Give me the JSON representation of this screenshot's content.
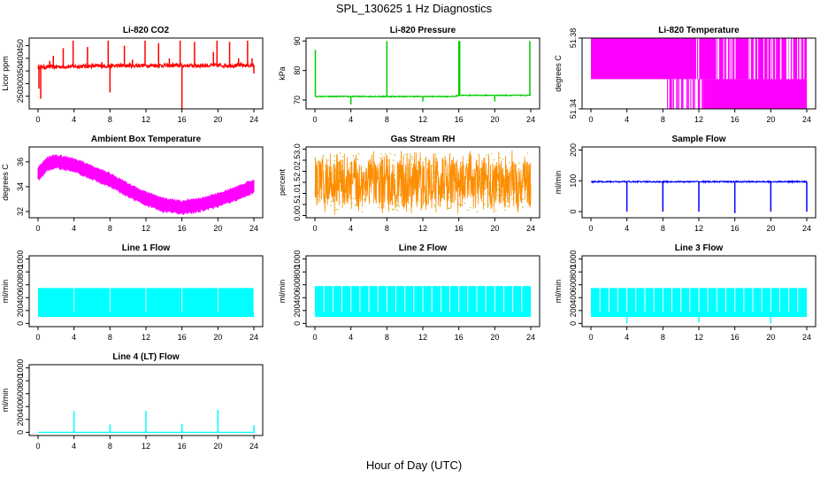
{
  "page": {
    "title": "SPL_130625  1 Hz Diagnostics",
    "xlabel": "Hour of Day (UTC)"
  },
  "chart_data": [
    {
      "type": "line",
      "title": "Li-820 CO2",
      "ylabel": "Licor ppm",
      "color": "#ff0000",
      "xlim": [
        0,
        24
      ],
      "xticks": [
        "0",
        "4",
        "8",
        "12",
        "16",
        "20",
        "24"
      ],
      "ylim": [
        200,
        480
      ],
      "yticks": [
        250,
        300,
        350,
        400,
        450
      ],
      "baseline": [
        [
          0,
          365
        ],
        [
          4,
          368
        ],
        [
          8,
          370
        ],
        [
          12,
          372
        ],
        [
          16,
          371
        ],
        [
          20,
          372
        ],
        [
          24,
          372
        ]
      ],
      "noise": 8,
      "spikes": [
        [
          0.1,
          280
        ],
        [
          0.3,
          240
        ],
        [
          1.3,
          390
        ],
        [
          1.7,
          410
        ],
        [
          2.8,
          440
        ],
        [
          3.9,
          470
        ],
        [
          5.5,
          445
        ],
        [
          7.1,
          385
        ],
        [
          7.8,
          470
        ],
        [
          8.0,
          265
        ],
        [
          9.6,
          450
        ],
        [
          10.5,
          395
        ],
        [
          11.9,
          470
        ],
        [
          13.4,
          460
        ],
        [
          14.6,
          400
        ],
        [
          15.8,
          470
        ],
        [
          16.0,
          190
        ],
        [
          17.4,
          465
        ],
        [
          19.5,
          425
        ],
        [
          19.9,
          470
        ],
        [
          21.3,
          465
        ],
        [
          22.3,
          400
        ],
        [
          23.3,
          470
        ],
        [
          23.8,
          400
        ],
        [
          24.0,
          340
        ]
      ]
    },
    {
      "type": "line",
      "title": "Li-820 Pressure",
      "ylabel": "kPa",
      "color": "#00cc00",
      "xlim": [
        0,
        24
      ],
      "xticks": [
        "0",
        "4",
        "8",
        "12",
        "16",
        "20",
        "24"
      ],
      "ylim": [
        67,
        91
      ],
      "yticks": [
        70,
        80,
        90
      ],
      "baseline": [
        [
          0,
          71.2
        ],
        [
          15.5,
          71.2
        ],
        [
          16,
          71.6
        ],
        [
          24,
          71.6
        ]
      ],
      "noise": 0.15,
      "spikes": [
        [
          0.05,
          87
        ],
        [
          4.0,
          68.5
        ],
        [
          8.0,
          90
        ],
        [
          12.0,
          69.5
        ],
        [
          16.0,
          90
        ],
        [
          16.1,
          90
        ],
        [
          20.0,
          69.5
        ],
        [
          23.9,
          90
        ]
      ]
    },
    {
      "type": "band",
      "title": "Li-820 Temperature",
      "ylabel": "degrees C",
      "color": "#ff00ff",
      "xlim": [
        0,
        24
      ],
      "xticks": [
        "0",
        "4",
        "8",
        "12",
        "16",
        "20",
        "24"
      ],
      "ylim": [
        51.34,
        51.38
      ],
      "yticks": [
        "51.34",
        "51.38"
      ],
      "levels": [
        51.3396,
        51.3568,
        51.3825
      ],
      "x_lower_start": 8.5
    },
    {
      "type": "envelope",
      "title": "Ambient Box Temperature",
      "ylabel": "degrees C",
      "color": "#ff00ff",
      "xlim": [
        0,
        24
      ],
      "xticks": [
        "0",
        "4",
        "8",
        "12",
        "16",
        "20",
        "24"
      ],
      "ylim": [
        31.5,
        37.2
      ],
      "yticks": [
        32,
        34,
        36
      ],
      "center": [
        [
          0,
          35.0
        ],
        [
          1,
          35.8
        ],
        [
          2,
          36.0
        ],
        [
          4,
          35.7
        ],
        [
          6,
          35.1
        ],
        [
          8,
          34.5
        ],
        [
          10,
          33.7
        ],
        [
          12,
          33.0
        ],
        [
          14,
          32.5
        ],
        [
          16,
          32.3
        ],
        [
          18,
          32.5
        ],
        [
          20,
          32.9
        ],
        [
          22,
          33.4
        ],
        [
          24,
          34.0
        ]
      ],
      "half_width": 0.6
    },
    {
      "type": "noise",
      "title": "Gas Stream RH",
      "ylabel": "percent",
      "color": "#ff8c00",
      "color2": "#b8b800",
      "xlim": [
        0,
        24
      ],
      "xticks": [
        "0",
        "4",
        "8",
        "12",
        "16",
        "20",
        "24"
      ],
      "ylim": [
        -0.1,
        3.1
      ],
      "yticks": [
        "0.0",
        "0.5",
        "1.0",
        "1.5",
        "2.0",
        "2.5",
        "3.0"
      ],
      "min": 0.0,
      "max": 3.0,
      "center": 1.5
    },
    {
      "type": "line",
      "title": "Sample Flow",
      "ylabel": "ml/min",
      "color": "#0000ff",
      "xlim": [
        0,
        24
      ],
      "xticks": [
        "0",
        "4",
        "8",
        "12",
        "16",
        "20",
        "24"
      ],
      "ylim": [
        -20,
        210
      ],
      "yticks": [
        0,
        100,
        200
      ],
      "baseline": [
        [
          0,
          97
        ],
        [
          24,
          97
        ]
      ],
      "noise": 2,
      "spikes": [
        [
          4.0,
          0
        ],
        [
          8.0,
          0
        ],
        [
          12.0,
          0
        ],
        [
          16.0,
          -5
        ],
        [
          20.0,
          0
        ],
        [
          24.0,
          0
        ]
      ]
    },
    {
      "type": "band",
      "title": "Line 1 Flow",
      "ylabel": "ml/min",
      "color": "#00ffff",
      "xlim": [
        0,
        24
      ],
      "xticks": [
        "0",
        "4",
        "8",
        "12",
        "16",
        "20",
        "24"
      ],
      "ylim": [
        -50,
        1050
      ],
      "yticks": [
        0,
        200,
        400,
        600,
        800,
        1000
      ],
      "low": 100,
      "high": 550,
      "gaps": [
        4.0,
        8.0,
        12.0,
        16.0,
        20.0,
        24.0
      ]
    },
    {
      "type": "band",
      "title": "Line 2 Flow",
      "ylabel": "ml/min",
      "color": "#00ffff",
      "xlim": [
        0,
        24
      ],
      "xticks": [
        "0",
        "4",
        "8",
        "12",
        "16",
        "20",
        "24"
      ],
      "ylim": [
        -50,
        1050
      ],
      "yticks": [
        0,
        200,
        400,
        600,
        800,
        1000
      ],
      "low": 100,
      "high": 580,
      "gaps": [
        1.0,
        2.0,
        3.0,
        4.0,
        5.0,
        6.0,
        7.0,
        8.0,
        9.0,
        10.0,
        11.0,
        12.0,
        13.0,
        14.0,
        15.0,
        16.0,
        17.0,
        18.0,
        19.0,
        20.0,
        21.0,
        22.0,
        23.0
      ]
    },
    {
      "type": "band",
      "title": "Line 3 Flow",
      "ylabel": "ml/min",
      "color": "#00ffff",
      "xlim": [
        0,
        24
      ],
      "xticks": [
        "0",
        "4",
        "8",
        "12",
        "16",
        "20",
        "24"
      ],
      "ylim": [
        -50,
        1050
      ],
      "yticks": [
        0,
        200,
        400,
        600,
        800,
        1000
      ],
      "low": 100,
      "high": 550,
      "gaps": [
        1.0,
        2.0,
        3.0,
        4.0,
        5.0,
        6.0,
        7.0,
        8.0,
        9.0,
        10.0,
        11.0,
        12.0,
        13.0,
        14.0,
        15.0,
        16.0,
        17.0,
        18.0,
        19.0,
        20.0,
        21.0,
        22.0,
        23.0
      ],
      "dips": [
        [
          4.0,
          0
        ],
        [
          12.0,
          20
        ],
        [
          20.0,
          0
        ]
      ]
    },
    {
      "type": "line",
      "title": "Line 4 (LT) Flow",
      "ylabel": "ml/min",
      "color": "#00ffff",
      "xlim": [
        0,
        24
      ],
      "xticks": [
        "0",
        "4",
        "8",
        "12",
        "16",
        "20",
        "24"
      ],
      "ylim": [
        -50,
        1050
      ],
      "yticks": [
        0,
        200,
        400,
        600,
        800,
        1000
      ],
      "baseline": [
        [
          0,
          0
        ],
        [
          24,
          0
        ]
      ],
      "noise": 0,
      "spikes": [
        [
          4.0,
          330
        ],
        [
          8.0,
          120
        ],
        [
          12.0,
          330
        ],
        [
          16.0,
          130
        ],
        [
          20.0,
          350
        ],
        [
          24.0,
          110
        ]
      ]
    }
  ]
}
